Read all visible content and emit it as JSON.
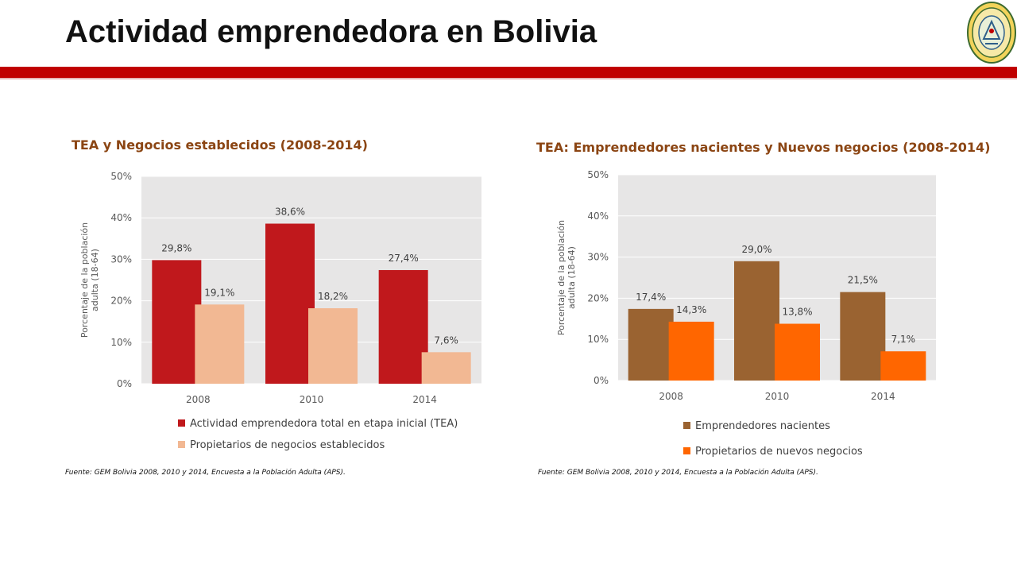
{
  "header": {
    "title": "Actividad emprendedora en Bolivia",
    "accent_color": "#c00000"
  },
  "logo": {
    "icon": "university-seal-icon"
  },
  "chart_data": [
    {
      "type": "bar",
      "title": "TEA y Negocios establecidos (2008-2014)",
      "ylabel": [
        "Porcentaje de la población",
        "adulta (18-64)"
      ],
      "categories": [
        "2008",
        "2010",
        "2014"
      ],
      "yticks": [
        "0%",
        "10%",
        "20%",
        "30%",
        "40%",
        "50%"
      ],
      "ylim": [
        0,
        50
      ],
      "grid": true,
      "legend_position": "bottom",
      "series": [
        {
          "name": "Actividad emprendedora total en etapa inicial (TEA)",
          "values": [
            29.8,
            38.6,
            27.4
          ],
          "labels": [
            "29,8%",
            "38,6%",
            "27,4%"
          ],
          "color": "#c0181c"
        },
        {
          "name": "Propietarios de negocios establecidos",
          "values": [
            19.1,
            18.2,
            7.6
          ],
          "labels": [
            "19,1%",
            "18,2%",
            "7,6%"
          ],
          "color": "#f2b893"
        }
      ],
      "source": "Fuente: GEM Bolivia 2008, 2010 y 2014, Encuesta  a la Población Adulta (APS)."
    },
    {
      "type": "bar",
      "title": "TEA: Emprendedores nacientes y Nuevos negocios (2008-2014)",
      "ylabel": [
        "Porcentaje de la población",
        "adulta (18-64)"
      ],
      "categories": [
        "2008",
        "2010",
        "2014"
      ],
      "yticks": [
        "0%",
        "10%",
        "20%",
        "30%",
        "40%",
        "50%"
      ],
      "ylim": [
        0,
        50
      ],
      "grid": true,
      "legend_position": "bottom",
      "series": [
        {
          "name": "Emprendedores nacientes",
          "values": [
            17.4,
            29.0,
            21.5
          ],
          "labels": [
            "17,4%",
            "29,0%",
            "21,5%"
          ],
          "color": "#9a6331"
        },
        {
          "name": "Propietarios de nuevos negocios",
          "values": [
            14.3,
            13.8,
            7.1
          ],
          "labels": [
            "14,3%",
            "13,8%",
            "7,1%"
          ],
          "color": "#ff6600"
        }
      ],
      "source": "Fuente: GEM Bolivia 2008, 2010 y 2014, Encuesta  a la Población Adulta (APS)."
    }
  ]
}
